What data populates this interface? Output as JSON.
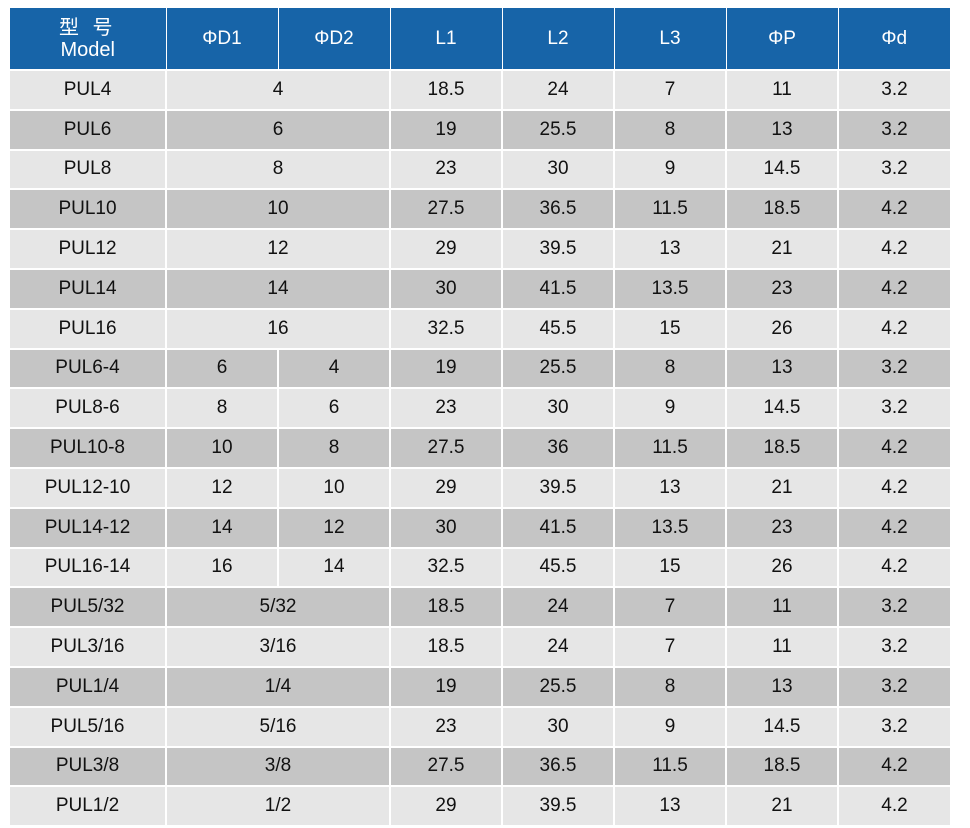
{
  "header": {
    "model_zh": "型 号",
    "model_en": "Model",
    "cols": [
      "ΦD1",
      "ΦD2",
      "L1",
      "L2",
      "L3",
      "ΦP",
      "Φd"
    ]
  },
  "rows": [
    {
      "model": "PUL4",
      "d": "4",
      "l1": "18.5",
      "l2": "24",
      "l3": "7",
      "p": "11",
      "dd": "3.2"
    },
    {
      "model": "PUL6",
      "d": "6",
      "l1": "19",
      "l2": "25.5",
      "l3": "8",
      "p": "13",
      "dd": "3.2"
    },
    {
      "model": "PUL8",
      "d": "8",
      "l1": "23",
      "l2": "30",
      "l3": "9",
      "p": "14.5",
      "dd": "3.2"
    },
    {
      "model": "PUL10",
      "d": "10",
      "l1": "27.5",
      "l2": "36.5",
      "l3": "11.5",
      "p": "18.5",
      "dd": "4.2"
    },
    {
      "model": "PUL12",
      "d": "12",
      "l1": "29",
      "l2": "39.5",
      "l3": "13",
      "p": "21",
      "dd": "4.2"
    },
    {
      "model": "PUL14",
      "d": "14",
      "l1": "30",
      "l2": "41.5",
      "l3": "13.5",
      "p": "23",
      "dd": "4.2"
    },
    {
      "model": "PUL16",
      "d": "16",
      "l1": "32.5",
      "l2": "45.5",
      "l3": "15",
      "p": "26",
      "dd": "4.2"
    },
    {
      "model": "PUL6-4",
      "d1": "6",
      "d2": "4",
      "l1": "19",
      "l2": "25.5",
      "l3": "8",
      "p": "13",
      "dd": "3.2"
    },
    {
      "model": "PUL8-6",
      "d1": "8",
      "d2": "6",
      "l1": "23",
      "l2": "30",
      "l3": "9",
      "p": "14.5",
      "dd": "3.2"
    },
    {
      "model": "PUL10-8",
      "d1": "10",
      "d2": "8",
      "l1": "27.5",
      "l2": "36",
      "l3": "11.5",
      "p": "18.5",
      "dd": "4.2"
    },
    {
      "model": "PUL12-10",
      "d1": "12",
      "d2": "10",
      "l1": "29",
      "l2": "39.5",
      "l3": "13",
      "p": "21",
      "dd": "4.2"
    },
    {
      "model": "PUL14-12",
      "d1": "14",
      "d2": "12",
      "l1": "30",
      "l2": "41.5",
      "l3": "13.5",
      "p": "23",
      "dd": "4.2"
    },
    {
      "model": "PUL16-14",
      "d1": "16",
      "d2": "14",
      "l1": "32.5",
      "l2": "45.5",
      "l3": "15",
      "p": "26",
      "dd": "4.2"
    },
    {
      "model": "PUL5/32",
      "d": "5/32",
      "l1": "18.5",
      "l2": "24",
      "l3": "7",
      "p": "11",
      "dd": "3.2"
    },
    {
      "model": "PUL3/16",
      "d": "3/16",
      "l1": "18.5",
      "l2": "24",
      "l3": "7",
      "p": "11",
      "dd": "3.2"
    },
    {
      "model": "PUL1/4",
      "d": "1/4",
      "l1": "19",
      "l2": "25.5",
      "l3": "8",
      "p": "13",
      "dd": "3.2"
    },
    {
      "model": "PUL5/16",
      "d": "5/16",
      "l1": "23",
      "l2": "30",
      "l3": "9",
      "p": "14.5",
      "dd": "3.2"
    },
    {
      "model": "PUL3/8",
      "d": "3/8",
      "l1": "27.5",
      "l2": "36.5",
      "l3": "11.5",
      "p": "18.5",
      "dd": "4.2"
    },
    {
      "model": "PUL1/2",
      "d": "1/2",
      "l1": "29",
      "l2": "39.5",
      "l3": "13",
      "p": "21",
      "dd": "4.2"
    }
  ],
  "colors": {
    "header_bg": "#1764a8",
    "row_light": "#e6e6e6",
    "row_dark": "#c5c5c5"
  }
}
